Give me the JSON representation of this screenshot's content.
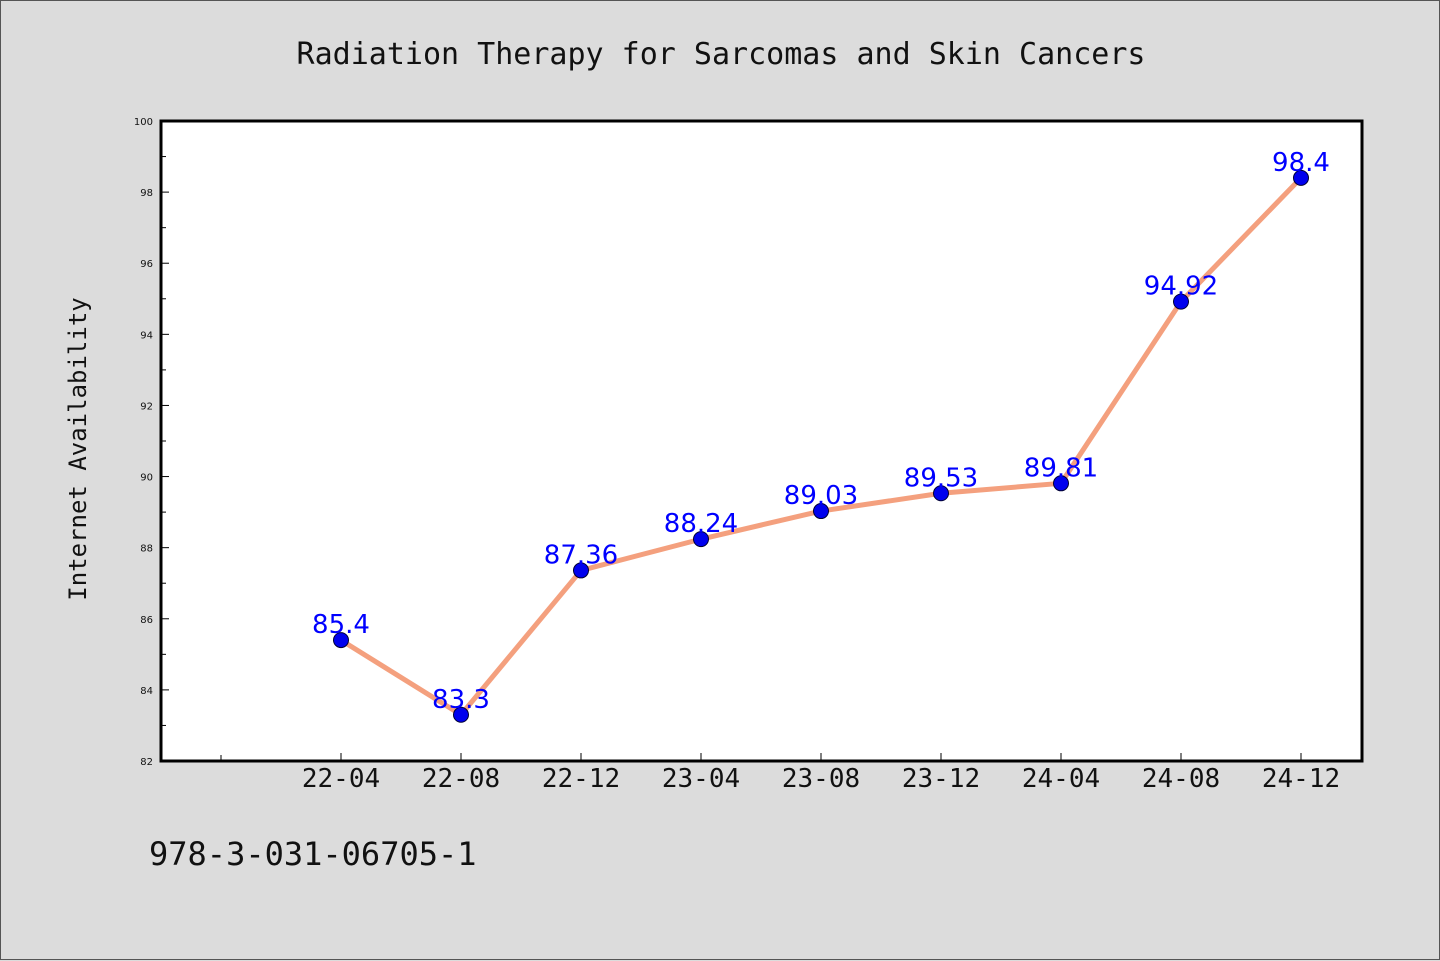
{
  "chart_data": {
    "type": "line",
    "title": "Radiation Therapy for Sarcomas and Skin Cancers",
    "xlabel": "",
    "ylabel": "Internet Availability",
    "categories": [
      "22-04",
      "22-08",
      "22-12",
      "23-04",
      "23-08",
      "23-12",
      "24-04",
      "24-08",
      "24-12"
    ],
    "series": [
      {
        "values": [
          85.4,
          83.3,
          87.36,
          88.24,
          89.03,
          89.53,
          89.81,
          94.92,
          98.4
        ],
        "labels": [
          "85.4",
          "83.3",
          "87.36",
          "88.24",
          "89.03",
          "89.53",
          "89.81",
          "94.92",
          "98.4"
        ]
      }
    ],
    "ylim": [
      82,
      100
    ],
    "yticks": [
      "82",
      "84",
      "86",
      "88",
      "90",
      "92",
      "94",
      "96",
      "98",
      "100"
    ],
    "grid": false,
    "legend": "none",
    "colors": {
      "line": "#f4a07e",
      "marker": "#0000ee",
      "label": "#0000ff",
      "background": "#dcdcdc",
      "plot_background": "#ffffff"
    }
  },
  "footnote": "978-3-031-06705-1"
}
